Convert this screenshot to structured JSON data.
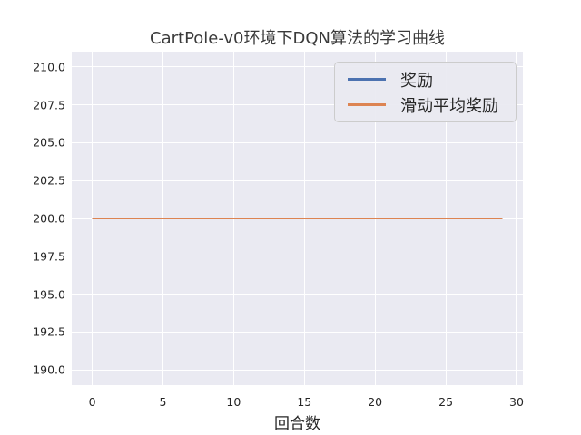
{
  "figure": {
    "background": "#ffffff",
    "plot_background": "#eaeaf2",
    "grid_color": "#ffffff",
    "text_color": "#262626"
  },
  "chart_data": {
    "type": "line",
    "title": "CartPole-v0环境下DQN算法的学习曲线",
    "xlabel": "回合数",
    "ylabel": "",
    "grid": true,
    "legend_position": "upper right",
    "xlim": [
      -1.45,
      30.45
    ],
    "ylim": [
      189,
      211
    ],
    "xticks": [
      0,
      5,
      10,
      15,
      20,
      25,
      30
    ],
    "xticklabels": [
      "0",
      "5",
      "10",
      "15",
      "20",
      "25",
      "30"
    ],
    "yticks": [
      190,
      192.5,
      195,
      197.5,
      200,
      202.5,
      205,
      207.5,
      210
    ],
    "yticklabels": [
      "190.0",
      "192.5",
      "195.0",
      "197.5",
      "200.0",
      "202.5",
      "205.0",
      "207.5",
      "210.0"
    ],
    "x": [
      0,
      1,
      2,
      3,
      4,
      5,
      6,
      7,
      8,
      9,
      10,
      11,
      12,
      13,
      14,
      15,
      16,
      17,
      18,
      19,
      20,
      21,
      22,
      23,
      24,
      25,
      26,
      27,
      28,
      29
    ],
    "series": [
      {
        "name": "奖励",
        "color": "#4c72b0",
        "values": [
          200,
          200,
          200,
          200,
          200,
          200,
          200,
          200,
          200,
          200,
          200,
          200,
          200,
          200,
          200,
          200,
          200,
          200,
          200,
          200,
          200,
          200,
          200,
          200,
          200,
          200,
          200,
          200,
          200,
          200
        ]
      },
      {
        "name": "滑动平均奖励",
        "color": "#dd8452",
        "values": [
          200,
          200,
          200,
          200,
          200,
          200,
          200,
          200,
          200,
          200,
          200,
          200,
          200,
          200,
          200,
          200,
          200,
          200,
          200,
          200,
          200,
          200,
          200,
          200,
          200,
          200,
          200,
          200,
          200,
          200
        ]
      }
    ]
  }
}
